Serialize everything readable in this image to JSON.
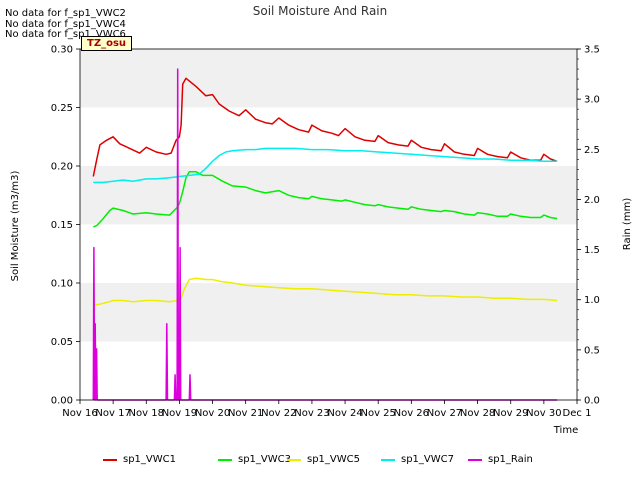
{
  "header": {
    "nodata_lines": [
      "No data for f_sp1_VWC2",
      "No data for f_sp1_VWC4",
      "No data for f_sp1_VWC6"
    ],
    "badge": "TZ_osu"
  },
  "chart_data": {
    "type": "line",
    "title": "Soil Moisture And Rain",
    "xlabel": "Time",
    "ylabel": "Soil Moisture (m3/m3)",
    "y2label": "Rain (mm)",
    "x_ticks": [
      "Nov 16",
      "Nov 17",
      "Nov 18",
      "Nov 19",
      "Nov 20",
      "Nov 21",
      "Nov 22",
      "Nov 23",
      "Nov 24",
      "Nov 25",
      "Nov 26",
      "Nov 27",
      "Nov 28",
      "Nov 29",
      "Nov 30",
      "Dec 1"
    ],
    "xlim": [
      16,
      31
    ],
    "ylim": [
      0,
      0.3
    ],
    "y_ticks": [
      "0.00",
      "0.05",
      "0.10",
      "0.15",
      "0.20",
      "0.25",
      "0.30"
    ],
    "y2lim": [
      0,
      3.5
    ],
    "y2_ticks": [
      "0.0",
      "0.5",
      "1.0",
      "1.5",
      "2.0",
      "2.5",
      "3.0",
      "3.5"
    ],
    "grid": "horizontal bands",
    "legend_position": "bottom",
    "colors": {
      "sp1_VWC1": "#dd0000",
      "sp1_VWC3": "#00ee00",
      "sp1_VWC5": "#eeee00",
      "sp1_VWC7": "#00eeee",
      "sp1_Rain": "#dd00dd"
    },
    "series": [
      {
        "name": "sp1_VWC1",
        "axis": "left",
        "points": [
          [
            16.4,
            0.191
          ],
          [
            16.5,
            0.205
          ],
          [
            16.6,
            0.218
          ],
          [
            16.8,
            0.222
          ],
          [
            17.0,
            0.225
          ],
          [
            17.2,
            0.219
          ],
          [
            17.5,
            0.215
          ],
          [
            17.8,
            0.211
          ],
          [
            18.0,
            0.216
          ],
          [
            18.3,
            0.212
          ],
          [
            18.6,
            0.21
          ],
          [
            18.75,
            0.211
          ],
          [
            18.9,
            0.222
          ],
          [
            19.0,
            0.225
          ],
          [
            19.05,
            0.235
          ],
          [
            19.1,
            0.27
          ],
          [
            19.2,
            0.275
          ],
          [
            19.5,
            0.268
          ],
          [
            19.8,
            0.26
          ],
          [
            20.0,
            0.261
          ],
          [
            20.2,
            0.253
          ],
          [
            20.5,
            0.247
          ],
          [
            20.8,
            0.243
          ],
          [
            21.0,
            0.248
          ],
          [
            21.3,
            0.24
          ],
          [
            21.6,
            0.237
          ],
          [
            21.8,
            0.236
          ],
          [
            22.0,
            0.241
          ],
          [
            22.3,
            0.235
          ],
          [
            22.6,
            0.231
          ],
          [
            22.9,
            0.229
          ],
          [
            23.0,
            0.235
          ],
          [
            23.3,
            0.23
          ],
          [
            23.6,
            0.228
          ],
          [
            23.8,
            0.226
          ],
          [
            24.0,
            0.232
          ],
          [
            24.3,
            0.225
          ],
          [
            24.6,
            0.222
          ],
          [
            24.9,
            0.221
          ],
          [
            25.0,
            0.226
          ],
          [
            25.3,
            0.22
          ],
          [
            25.6,
            0.218
          ],
          [
            25.9,
            0.217
          ],
          [
            26.0,
            0.222
          ],
          [
            26.3,
            0.216
          ],
          [
            26.6,
            0.214
          ],
          [
            26.9,
            0.213
          ],
          [
            27.0,
            0.219
          ],
          [
            27.3,
            0.212
          ],
          [
            27.6,
            0.21
          ],
          [
            27.9,
            0.209
          ],
          [
            28.0,
            0.215
          ],
          [
            28.3,
            0.21
          ],
          [
            28.6,
            0.208
          ],
          [
            28.9,
            0.207
          ],
          [
            29.0,
            0.212
          ],
          [
            29.3,
            0.207
          ],
          [
            29.6,
            0.205
          ],
          [
            29.9,
            0.205
          ],
          [
            30.0,
            0.21
          ],
          [
            30.2,
            0.206
          ],
          [
            30.4,
            0.204
          ]
        ]
      },
      {
        "name": "sp1_VWC3",
        "axis": "left",
        "points": [
          [
            16.4,
            0.148
          ],
          [
            16.5,
            0.149
          ],
          [
            16.7,
            0.155
          ],
          [
            16.9,
            0.162
          ],
          [
            17.0,
            0.164
          ],
          [
            17.3,
            0.162
          ],
          [
            17.6,
            0.159
          ],
          [
            18.0,
            0.16
          ],
          [
            18.3,
            0.159
          ],
          [
            18.7,
            0.158
          ],
          [
            18.95,
            0.165
          ],
          [
            19.0,
            0.168
          ],
          [
            19.1,
            0.178
          ],
          [
            19.2,
            0.19
          ],
          [
            19.3,
            0.195
          ],
          [
            19.5,
            0.195
          ],
          [
            19.7,
            0.192
          ],
          [
            20.0,
            0.192
          ],
          [
            20.3,
            0.187
          ],
          [
            20.6,
            0.183
          ],
          [
            21.0,
            0.182
          ],
          [
            21.3,
            0.179
          ],
          [
            21.6,
            0.177
          ],
          [
            22.0,
            0.179
          ],
          [
            22.3,
            0.175
          ],
          [
            22.6,
            0.173
          ],
          [
            22.9,
            0.172
          ],
          [
            23.0,
            0.174
          ],
          [
            23.3,
            0.172
          ],
          [
            23.6,
            0.171
          ],
          [
            23.9,
            0.17
          ],
          [
            24.0,
            0.171
          ],
          [
            24.3,
            0.169
          ],
          [
            24.6,
            0.167
          ],
          [
            24.9,
            0.166
          ],
          [
            25.0,
            0.167
          ],
          [
            25.3,
            0.165
          ],
          [
            25.6,
            0.164
          ],
          [
            25.9,
            0.163
          ],
          [
            26.0,
            0.165
          ],
          [
            26.3,
            0.163
          ],
          [
            26.6,
            0.162
          ],
          [
            26.9,
            0.161
          ],
          [
            27.0,
            0.162
          ],
          [
            27.3,
            0.161
          ],
          [
            27.6,
            0.159
          ],
          [
            27.9,
            0.158
          ],
          [
            28.0,
            0.16
          ],
          [
            28.3,
            0.159
          ],
          [
            28.6,
            0.157
          ],
          [
            28.9,
            0.157
          ],
          [
            29.0,
            0.159
          ],
          [
            29.3,
            0.157
          ],
          [
            29.6,
            0.156
          ],
          [
            29.9,
            0.156
          ],
          [
            30.0,
            0.158
          ],
          [
            30.2,
            0.156
          ],
          [
            30.4,
            0.155
          ]
        ]
      },
      {
        "name": "sp1_VWC5",
        "axis": "left",
        "points": [
          [
            16.4,
            0.081
          ],
          [
            16.6,
            0.082
          ],
          [
            16.9,
            0.084
          ],
          [
            17.0,
            0.085
          ],
          [
            17.3,
            0.085
          ],
          [
            17.6,
            0.084
          ],
          [
            18.0,
            0.085
          ],
          [
            18.3,
            0.085
          ],
          [
            18.7,
            0.084
          ],
          [
            18.95,
            0.085
          ],
          [
            19.05,
            0.087
          ],
          [
            19.15,
            0.095
          ],
          [
            19.3,
            0.103
          ],
          [
            19.5,
            0.104
          ],
          [
            19.8,
            0.103
          ],
          [
            20.0,
            0.103
          ],
          [
            20.3,
            0.101
          ],
          [
            20.6,
            0.1
          ],
          [
            21.0,
            0.098
          ],
          [
            21.5,
            0.097
          ],
          [
            22.0,
            0.096
          ],
          [
            22.5,
            0.095
          ],
          [
            23.0,
            0.095
          ],
          [
            23.5,
            0.094
          ],
          [
            24.0,
            0.093
          ],
          [
            24.5,
            0.092
          ],
          [
            25.0,
            0.091
          ],
          [
            25.5,
            0.09
          ],
          [
            26.0,
            0.09
          ],
          [
            26.5,
            0.089
          ],
          [
            27.0,
            0.089
          ],
          [
            27.5,
            0.088
          ],
          [
            28.0,
            0.088
          ],
          [
            28.5,
            0.087
          ],
          [
            29.0,
            0.087
          ],
          [
            29.5,
            0.086
          ],
          [
            30.0,
            0.086
          ],
          [
            30.4,
            0.085
          ]
        ]
      },
      {
        "name": "sp1_VWC7",
        "axis": "left",
        "points": [
          [
            16.4,
            0.186
          ],
          [
            16.7,
            0.186
          ],
          [
            17.0,
            0.187
          ],
          [
            17.3,
            0.188
          ],
          [
            17.6,
            0.187
          ],
          [
            18.0,
            0.189
          ],
          [
            18.3,
            0.189
          ],
          [
            18.7,
            0.19
          ],
          [
            19.0,
            0.191
          ],
          [
            19.3,
            0.192
          ],
          [
            19.6,
            0.193
          ],
          [
            19.8,
            0.198
          ],
          [
            20.0,
            0.204
          ],
          [
            20.2,
            0.209
          ],
          [
            20.4,
            0.212
          ],
          [
            20.6,
            0.213
          ],
          [
            21.0,
            0.214
          ],
          [
            21.3,
            0.214
          ],
          [
            21.6,
            0.215
          ],
          [
            22.0,
            0.215
          ],
          [
            22.5,
            0.215
          ],
          [
            23.0,
            0.214
          ],
          [
            23.5,
            0.214
          ],
          [
            24.0,
            0.213
          ],
          [
            24.5,
            0.213
          ],
          [
            25.0,
            0.212
          ],
          [
            25.5,
            0.211
          ],
          [
            26.0,
            0.21
          ],
          [
            26.5,
            0.209
          ],
          [
            27.0,
            0.208
          ],
          [
            27.5,
            0.207
          ],
          [
            28.0,
            0.206
          ],
          [
            28.5,
            0.206
          ],
          [
            29.0,
            0.205
          ],
          [
            29.5,
            0.205
          ],
          [
            30.0,
            0.204
          ],
          [
            30.4,
            0.204
          ]
        ]
      },
      {
        "name": "sp1_Rain",
        "axis": "right",
        "points": [
          [
            16.4,
            0
          ],
          [
            16.42,
            1.52
          ],
          [
            16.44,
            0
          ],
          [
            16.46,
            0.76
          ],
          [
            16.48,
            0
          ],
          [
            16.5,
            0.51
          ],
          [
            16.52,
            0
          ],
          [
            18.6,
            0
          ],
          [
            18.62,
            0.76
          ],
          [
            18.64,
            0
          ],
          [
            18.85,
            0
          ],
          [
            18.87,
            0.25
          ],
          [
            18.89,
            0
          ],
          [
            18.93,
            0
          ],
          [
            18.95,
            3.3
          ],
          [
            18.97,
            0
          ],
          [
            19.0,
            0
          ],
          [
            19.02,
            1.52
          ],
          [
            19.04,
            0
          ],
          [
            19.3,
            0
          ],
          [
            19.32,
            0.25
          ],
          [
            19.34,
            0
          ],
          [
            30.4,
            0
          ]
        ]
      }
    ]
  }
}
